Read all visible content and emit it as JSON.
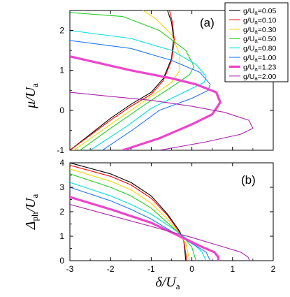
{
  "chart_data": [
    {
      "type": "line",
      "panel_label": "(a)",
      "ylabel": "μ/U",
      "ylabel_subscript": "a",
      "xlabel": "",
      "xlim": [
        -3,
        2
      ],
      "ylim": [
        -1,
        2.5
      ],
      "yticks": [
        "-1",
        "0",
        "1",
        "2"
      ],
      "series": [
        {
          "name": "g/Ua=0.05",
          "color": "#000000",
          "width": 1.1,
          "points": [
            [
              -3,
              -1
            ],
            [
              -2,
              -0.2
            ],
            [
              -1.5,
              0.15
            ],
            [
              -1,
              0.45
            ],
            [
              -0.7,
              0.8
            ],
            [
              -0.5,
              1.3
            ],
            [
              -0.45,
              1.8
            ],
            [
              -0.5,
              2.2
            ],
            [
              -0.6,
              2.5
            ]
          ]
        },
        {
          "name": "g/Ua=0.10",
          "color": "#ff0000",
          "width": 1.1,
          "points": [
            [
              -3,
              -1
            ],
            [
              -2,
              -0.25
            ],
            [
              -1.5,
              0.1
            ],
            [
              -1,
              0.4
            ],
            [
              -0.7,
              0.75
            ],
            [
              -0.5,
              1.25
            ],
            [
              -0.43,
              1.75
            ],
            [
              -0.48,
              2.2
            ],
            [
              -0.55,
              2.5
            ]
          ]
        },
        {
          "name": "g/Ua=0.30",
          "color": "#f0d800",
          "width": 1.1,
          "points": [
            [
              -2.9,
              -1
            ],
            [
              -2,
              -0.35
            ],
            [
              -1.5,
              0
            ],
            [
              -1,
              0.35
            ],
            [
              -0.5,
              0.7
            ],
            [
              -0.3,
              1.0
            ],
            [
              -0.3,
              1.4
            ],
            [
              -0.5,
              1.9
            ],
            [
              -0.9,
              2.3
            ],
            [
              -1.2,
              2.5
            ]
          ]
        },
        {
          "name": "g/Ua=0.50",
          "color": "#22cc22",
          "width": 1.1,
          "points": [
            [
              -2.75,
              -1
            ],
            [
              -2,
              -0.45
            ],
            [
              -1.5,
              -0.1
            ],
            [
              -1,
              0.25
            ],
            [
              -0.4,
              0.65
            ],
            [
              -0.05,
              0.9
            ],
            [
              0.05,
              1.1
            ],
            [
              -0.15,
              1.5
            ],
            [
              -0.8,
              2
            ],
            [
              -1.7,
              2.35
            ],
            [
              -3,
              2.45
            ]
          ]
        },
        {
          "name": "g/Ua=0.80",
          "color": "#00e0e0",
          "width": 1.1,
          "points": [
            [
              -2.5,
              -1
            ],
            [
              -1.6,
              -0.4
            ],
            [
              -1,
              0.05
            ],
            [
              -0.2,
              0.45
            ],
            [
              0.3,
              0.7
            ],
            [
              0.35,
              0.85
            ],
            [
              0.1,
              1.15
            ],
            [
              -0.5,
              1.5
            ],
            [
              -1.5,
              1.8
            ],
            [
              -3,
              2.0
            ]
          ]
        },
        {
          "name": "g/Ua=1.00",
          "color": "#2277ff",
          "width": 1.1,
          "points": [
            [
              -2.2,
              -1
            ],
            [
              -1.4,
              -0.45
            ],
            [
              -0.8,
              0
            ],
            [
              0,
              0.3
            ],
            [
              0.4,
              0.5
            ],
            [
              0.45,
              0.65
            ],
            [
              0.2,
              0.95
            ],
            [
              -0.5,
              1.25
            ],
            [
              -1.5,
              1.55
            ],
            [
              -3,
              1.75
            ]
          ]
        },
        {
          "name": "g/Ua=1.23",
          "color": "#ee44cc",
          "width": 3.2,
          "points": [
            [
              -1.7,
              -1
            ],
            [
              -0.8,
              -0.7
            ],
            [
              0,
              -0.35
            ],
            [
              0.5,
              -0.1
            ],
            [
              0.7,
              0.2
            ],
            [
              0.6,
              0.45
            ],
            [
              0.1,
              0.65
            ],
            [
              -0.5,
              0.8
            ],
            [
              -1.5,
              1.0
            ],
            [
              -3,
              1.35
            ]
          ]
        },
        {
          "name": "g/Ua=2.00",
          "color": "#aa22aa",
          "width": 1.1,
          "points": [
            [
              -0.8,
              -1
            ],
            [
              0.3,
              -0.8
            ],
            [
              1.2,
              -0.6
            ],
            [
              1.5,
              -0.45
            ],
            [
              1.4,
              -0.25
            ],
            [
              0.8,
              -0.05
            ],
            [
              0,
              0.1
            ],
            [
              -1,
              0.25
            ],
            [
              -2,
              0.35
            ],
            [
              -3,
              0.45
            ]
          ]
        }
      ]
    },
    {
      "type": "line",
      "panel_label": "(b)",
      "ylabel": "Δ/U",
      "ylabel_ph": "ph",
      "ylabel_subscript": "a",
      "xlabel": "δ/U",
      "xlabel_subscript": "a",
      "xlim": [
        -3,
        2
      ],
      "ylim": [
        0,
        4
      ],
      "xticks": [
        "-3",
        "-2",
        "-1",
        "0",
        "1",
        "2"
      ],
      "yticks": [
        "0",
        "1",
        "2",
        "3",
        "4"
      ],
      "series": [
        {
          "name": "g/Ua=0.05",
          "color": "#000000",
          "width": 1.1,
          "points": [
            [
              -3,
              4
            ],
            [
              -2,
              3.55
            ],
            [
              -1.5,
              3.2
            ],
            [
              -1,
              2.65
            ],
            [
              -0.6,
              1.9
            ],
            [
              -0.3,
              1.2
            ],
            [
              -0.2,
              0.8
            ],
            [
              -0.15,
              0
            ]
          ]
        },
        {
          "name": "g/Ua=0.10",
          "color": "#ff0000",
          "width": 1.1,
          "points": [
            [
              -3,
              3.9
            ],
            [
              -2,
              3.45
            ],
            [
              -1.5,
              3.1
            ],
            [
              -1,
              2.55
            ],
            [
              -0.6,
              1.85
            ],
            [
              -0.3,
              1.15
            ],
            [
              -0.2,
              0.8
            ],
            [
              -0.12,
              0
            ]
          ]
        },
        {
          "name": "g/Ua=0.30",
          "color": "#f0d800",
          "width": 1.1,
          "points": [
            [
              -3,
              3.75
            ],
            [
              -2,
              3.25
            ],
            [
              -1.5,
              2.9
            ],
            [
              -1,
              2.35
            ],
            [
              -0.6,
              1.7
            ],
            [
              -0.3,
              1.1
            ],
            [
              -0.15,
              0.7
            ],
            [
              -0.05,
              0
            ]
          ]
        },
        {
          "name": "g/Ua=0.50",
          "color": "#22cc22",
          "width": 1.1,
          "points": [
            [
              -3,
              3.55
            ],
            [
              -2,
              3.0
            ],
            [
              -1.5,
              2.65
            ],
            [
              -1,
              2.15
            ],
            [
              -0.6,
              1.55
            ],
            [
              -0.2,
              0.95
            ],
            [
              0,
              0.55
            ],
            [
              0.1,
              0
            ]
          ]
        },
        {
          "name": "g/Ua=0.80",
          "color": "#00e0e0",
          "width": 1.1,
          "points": [
            [
              -3,
              3.2
            ],
            [
              -2,
              2.65
            ],
            [
              -1.5,
              2.3
            ],
            [
              -1,
              1.9
            ],
            [
              -0.5,
              1.35
            ],
            [
              0,
              0.75
            ],
            [
              0.25,
              0.35
            ],
            [
              0.35,
              0
            ]
          ]
        },
        {
          "name": "g/Ua=1.00",
          "color": "#2277ff",
          "width": 1.1,
          "points": [
            [
              -3,
              3.0
            ],
            [
              -2,
              2.45
            ],
            [
              -1.5,
              2.1
            ],
            [
              -1,
              1.7
            ],
            [
              -0.5,
              1.2
            ],
            [
              0,
              0.7
            ],
            [
              0.35,
              0.35
            ],
            [
              0.45,
              0
            ]
          ]
        },
        {
          "name": "g/Ua=1.23",
          "color": "#ee44cc",
          "width": 3.2,
          "points": [
            [
              -3,
              2.6
            ],
            [
              -2,
              2.1
            ],
            [
              -1,
              1.55
            ],
            [
              -0.3,
              1.0
            ],
            [
              0.2,
              0.6
            ],
            [
              0.55,
              0.35
            ],
            [
              0.65,
              0.15
            ],
            [
              0.65,
              0
            ]
          ]
        },
        {
          "name": "g/Ua=2.00",
          "color": "#aa22aa",
          "width": 1.1,
          "points": [
            [
              -3,
              2.3
            ],
            [
              -2,
              1.85
            ],
            [
              -1,
              1.4
            ],
            [
              0,
              0.95
            ],
            [
              0.7,
              0.6
            ],
            [
              1.2,
              0.35
            ],
            [
              1.38,
              0.15
            ],
            [
              1.42,
              0
            ]
          ]
        }
      ]
    }
  ],
  "legend": {
    "placement": "top-right",
    "entries": [
      "g/Ua=0.05",
      "g/Ua=0.10",
      "g/Ua=0.30",
      "g/Ua=0.50",
      "g/Ua=0.80",
      "g/Ua=1.00",
      "g/Ua=1.23",
      "g/Ua=2.00"
    ],
    "values": [
      "=0.05",
      "=0.10",
      "=0.30",
      "=0.50",
      "=0.80",
      "=1.00",
      "=1.23",
      "=2.00"
    ]
  }
}
